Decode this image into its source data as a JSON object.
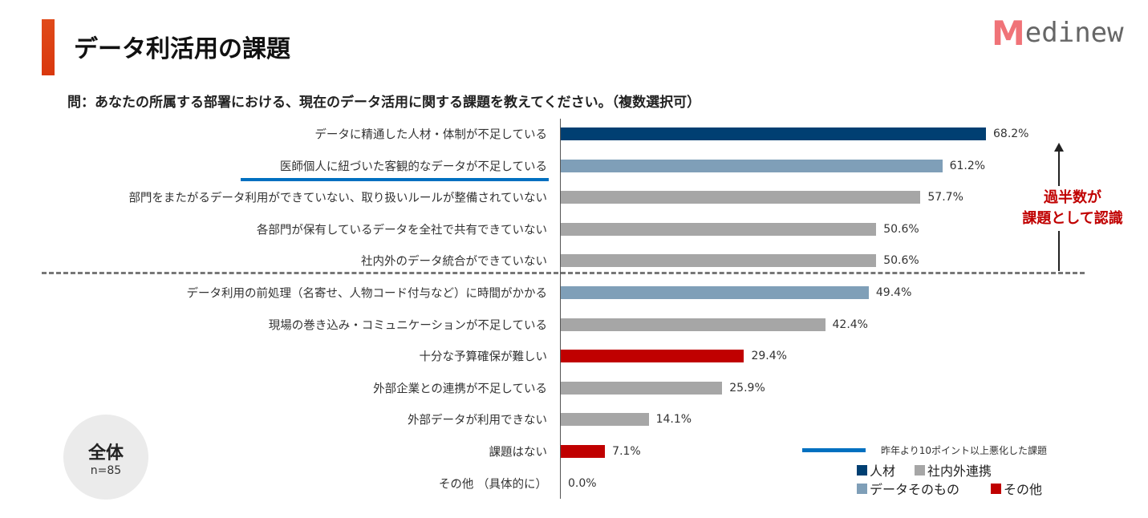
{
  "header": {
    "title": "データ利活用の課題",
    "question": "問：あなたの所属する部署における、現在のデータ活用に関する課題を教えてください。（複数選択可）"
  },
  "logo": {
    "first": "M",
    "rest": "edinew",
    "text": "Medinew"
  },
  "colors": {
    "人材": "#003f72",
    "データそのもの": "#7f9fb8",
    "社内外連携": "#a6a6a6",
    "その他": "#c00000",
    "worsened": "#0070c0"
  },
  "chart_data": {
    "type": "bar",
    "orientation": "horizontal",
    "categories": [
      "データに精通した人材・体制が不足している",
      "医師個人に紐づいた客観的なデータが不足している",
      "部門をまたがるデータ利用ができていない、取り扱いルールが整備されていない",
      "各部門が保有しているデータを全社で共有できていない",
      "社内外のデータ統合ができていない",
      "データ利用の前処理（名寄せ、人物コード付与など）に時間がかかる",
      "現場の巻き込み・コミュニケーションが不足している",
      "十分な予算確保が難しい",
      "外部企業との連携が不足している",
      "外部データが利用できない",
      "課題はない",
      "その他 （具体的に）"
    ],
    "values": [
      68.2,
      61.2,
      57.7,
      50.6,
      50.6,
      49.4,
      42.4,
      29.4,
      25.9,
      14.1,
      7.1,
      0.0
    ],
    "labels": [
      "68.2%",
      "61.2%",
      "57.7%",
      "50.6%",
      "50.6%",
      "49.4%",
      "42.4%",
      "29.4%",
      "25.9%",
      "14.1%",
      "7.1%",
      "0.0%"
    ],
    "groups": [
      "人材",
      "データそのもの",
      "社内外連携",
      "社内外連携",
      "社内外連携",
      "データそのもの",
      "社内外連携",
      "その他",
      "社内外連携",
      "社内外連携",
      "その他",
      "その他"
    ],
    "worsened": [
      false,
      true,
      false,
      false,
      false,
      false,
      false,
      false,
      false,
      false,
      false,
      false
    ],
    "xlim": [
      0,
      70
    ],
    "legend": {
      "line_label": "昨年より10ポイント以上悪化した課題",
      "items": [
        "人材",
        "社内外連携",
        "データそのもの",
        "その他"
      ],
      "placement": "bottom-right"
    },
    "annotation": {
      "line1": "過半数が",
      "line2": "課題として認識"
    },
    "sample": {
      "label": "全体",
      "n": "n=85"
    }
  }
}
